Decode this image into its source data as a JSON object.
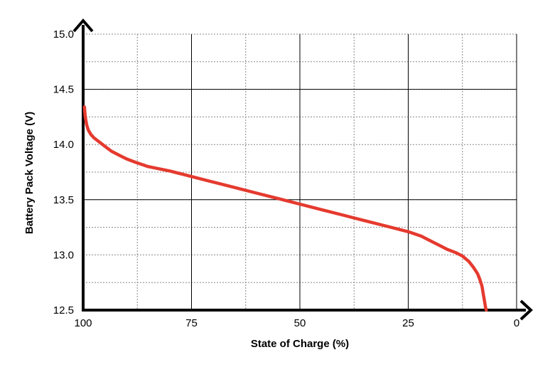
{
  "chart_data": {
    "type": "line",
    "xlabel": "State of Charge (%)",
    "ylabel": "Battery Pack Voltage (V)",
    "xlim": [
      100,
      0
    ],
    "ylim": [
      12.5,
      15.0
    ],
    "x_reversed": true,
    "grid": true,
    "x_ticks": [
      "100",
      "75",
      "50",
      "25",
      "0"
    ],
    "y_ticks": [
      "12.5",
      "13.0",
      "13.5",
      "14.0",
      "14.5",
      "15.0"
    ],
    "x_tick_values": [
      100,
      75,
      50,
      25,
      0
    ],
    "y_tick_values": [
      12.5,
      13.0,
      13.5,
      14.0,
      14.5,
      15.0
    ],
    "series_color": "#e53a2f",
    "series": [
      {
        "x": [
          99.7,
          99.5,
          99.2,
          98.8,
          98.2,
          97.5,
          96.5,
          95.5,
          94.5,
          93.5,
          92,
          90,
          88,
          85,
          80,
          75,
          70,
          65,
          60,
          55,
          50,
          45,
          40,
          35,
          30,
          25,
          22,
          20,
          18,
          16,
          14,
          12.5,
          11,
          10,
          9,
          8.5,
          8,
          7.7,
          7.4,
          7.2,
          7.0
        ],
        "y": [
          14.34,
          14.25,
          14.18,
          14.13,
          14.09,
          14.06,
          14.03,
          14.0,
          13.97,
          13.94,
          13.91,
          13.87,
          13.84,
          13.8,
          13.76,
          13.71,
          13.66,
          13.61,
          13.56,
          13.51,
          13.46,
          13.41,
          13.36,
          13.31,
          13.26,
          13.21,
          13.17,
          13.13,
          13.09,
          13.05,
          13.02,
          12.99,
          12.94,
          12.89,
          12.83,
          12.78,
          12.72,
          12.65,
          12.58,
          12.53,
          12.5
        ]
      }
    ]
  }
}
